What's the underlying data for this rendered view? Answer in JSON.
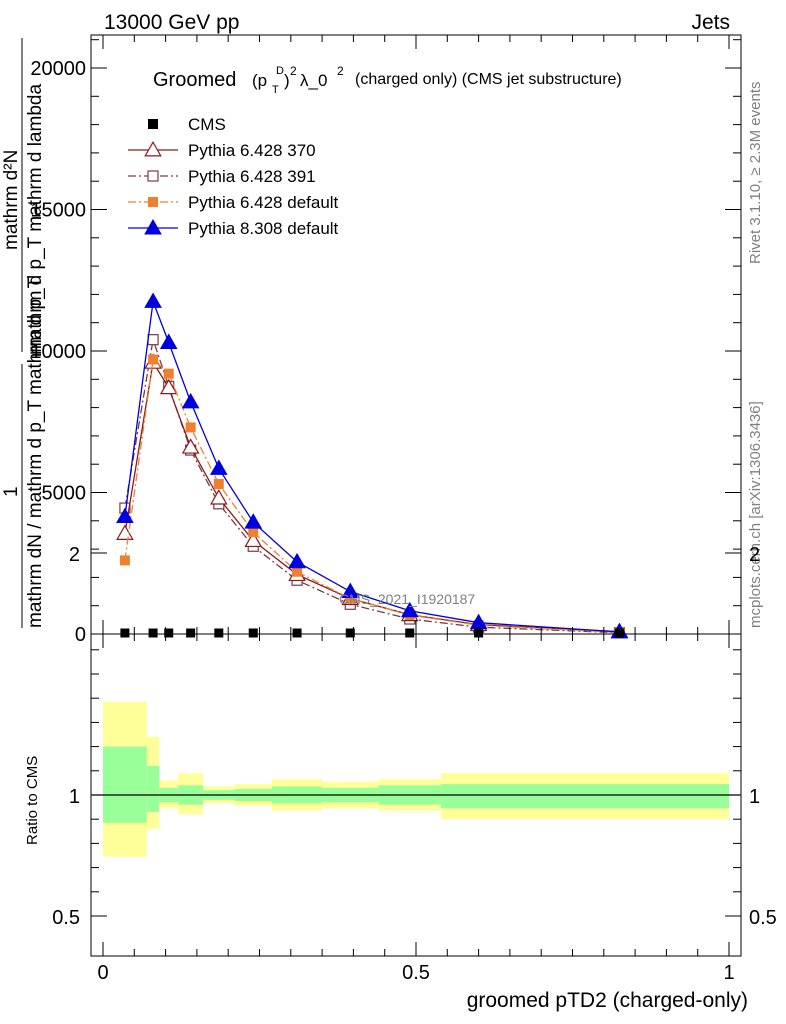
{
  "header": {
    "energy": "13000 GeV pp",
    "category": "Jets"
  },
  "side": {
    "rivet": "Rivet 3.1.10, ≥ 2.3M events",
    "mcplots": "mcplots.cern.ch [arXiv:1306.3436]"
  },
  "chart_data": {
    "type": "line",
    "title_main": "Groomed",
    "title_sup1": "D",
    "title_sub1": "T",
    "title_sup2": "2",
    "title_rest": "λ_0",
    "title_sup3": "2",
    "title_tail": "(charged only) (CMS jet substructure)",
    "watermark": "CMS_2021_I1920187",
    "xlabel": "groomed pTD2 (charged-only)",
    "ylabel_top_num": "1",
    "ylabel_top_den": "mathrm dN / mathrm d p_T mathrm d p_T",
    "ylabel_top_frac_num": "mathrm d²N",
    "ylabel_top_frac_den": "mathrm d p_T mathrm d lambda",
    "ylabel_bottom": "Ratio to CMS",
    "xlim": [
      0,
      1
    ],
    "ylim_main": [
      0,
      22500
    ],
    "ylim_ratio": [
      0.4,
      2.3
    ],
    "x_ticks": [
      "0",
      "0.5",
      "1"
    ],
    "y_ticks_main": [
      "0",
      "5000",
      "10000",
      "15000",
      "20000"
    ],
    "y_ticks_ratio": [
      "0.5",
      "1",
      "2"
    ],
    "legend": [
      {
        "label": "CMS",
        "color": "#000000",
        "marker": "square-filled",
        "line": "none"
      },
      {
        "label": "Pythia 6.428 370",
        "color": "#8b1a1a",
        "marker": "triangle-open",
        "line": "solid"
      },
      {
        "label": "Pythia 6.428 391",
        "color": "#7a3a4a",
        "marker": "square-open",
        "line": "dashdot"
      },
      {
        "label": "Pythia 6.428 default",
        "color": "#f08030",
        "marker": "square-filled",
        "line": "dashdot"
      },
      {
        "label": "Pythia 8.308 default",
        "color": "#0000dd",
        "marker": "triangle-filled",
        "line": "solid"
      }
    ],
    "x": [
      0.035,
      0.08,
      0.105,
      0.14,
      0.185,
      0.24,
      0.31,
      0.395,
      0.49,
      0.6,
      0.825
    ],
    "series": [
      {
        "name": "CMS",
        "values": [
          12,
          22,
          25,
          22,
          18,
          14,
          11,
          8,
          5,
          3,
          1
        ]
      },
      {
        "name": "Pythia 6.428 370",
        "values": [
          3550,
          9600,
          8700,
          6600,
          4800,
          3300,
          2100,
          1250,
          680,
          330,
          85
        ]
      },
      {
        "name": "Pythia 6.428 391",
        "values": [
          4450,
          10400,
          8750,
          6500,
          4600,
          3100,
          1900,
          1050,
          530,
          240,
          45
        ]
      },
      {
        "name": "Pythia 6.428 default",
        "values": [
          2600,
          9700,
          9200,
          7300,
          5300,
          3600,
          2200,
          1250,
          670,
          310,
          55
        ]
      },
      {
        "name": "Pythia 8.308 default",
        "values": [
          4150,
          11750,
          10300,
          8200,
          5850,
          3950,
          2550,
          1500,
          820,
          400,
          75
        ]
      }
    ],
    "ratio_bands": [
      {
        "x0": 0.0,
        "x1": 0.07,
        "y_lo": 0.745,
        "y_hi": 1.385,
        "i_lo": 0.885,
        "i_hi": 1.2
      },
      {
        "x0": 0.07,
        "x1": 0.09,
        "y_lo": 0.86,
        "y_hi": 1.24,
        "i_lo": 0.93,
        "i_hi": 1.12
      },
      {
        "x0": 0.09,
        "x1": 0.12,
        "y_lo": 0.945,
        "y_hi": 1.06,
        "i_lo": 0.97,
        "i_hi": 1.03
      },
      {
        "x0": 0.12,
        "x1": 0.16,
        "y_lo": 0.92,
        "y_hi": 1.09,
        "i_lo": 0.96,
        "i_hi": 1.04
      },
      {
        "x0": 0.16,
        "x1": 0.21,
        "y_lo": 0.965,
        "y_hi": 1.035,
        "i_lo": 0.98,
        "i_hi": 1.02
      },
      {
        "x0": 0.21,
        "x1": 0.27,
        "y_lo": 0.955,
        "y_hi": 1.045,
        "i_lo": 0.975,
        "i_hi": 1.025
      },
      {
        "x0": 0.27,
        "x1": 0.35,
        "y_lo": 0.935,
        "y_hi": 1.065,
        "i_lo": 0.965,
        "i_hi": 1.035
      },
      {
        "x0": 0.35,
        "x1": 0.44,
        "y_lo": 0.945,
        "y_hi": 1.055,
        "i_lo": 0.97,
        "i_hi": 1.03
      },
      {
        "x0": 0.44,
        "x1": 0.54,
        "y_lo": 0.935,
        "y_hi": 1.065,
        "i_lo": 0.96,
        "i_hi": 1.04
      },
      {
        "x0": 0.54,
        "x1": 1.0,
        "y_lo": 0.9,
        "y_hi": 1.09,
        "i_lo": 0.945,
        "i_hi": 1.045
      }
    ],
    "colors": {
      "band_outer": "#ffff99",
      "band_inner": "#99ff99"
    }
  }
}
